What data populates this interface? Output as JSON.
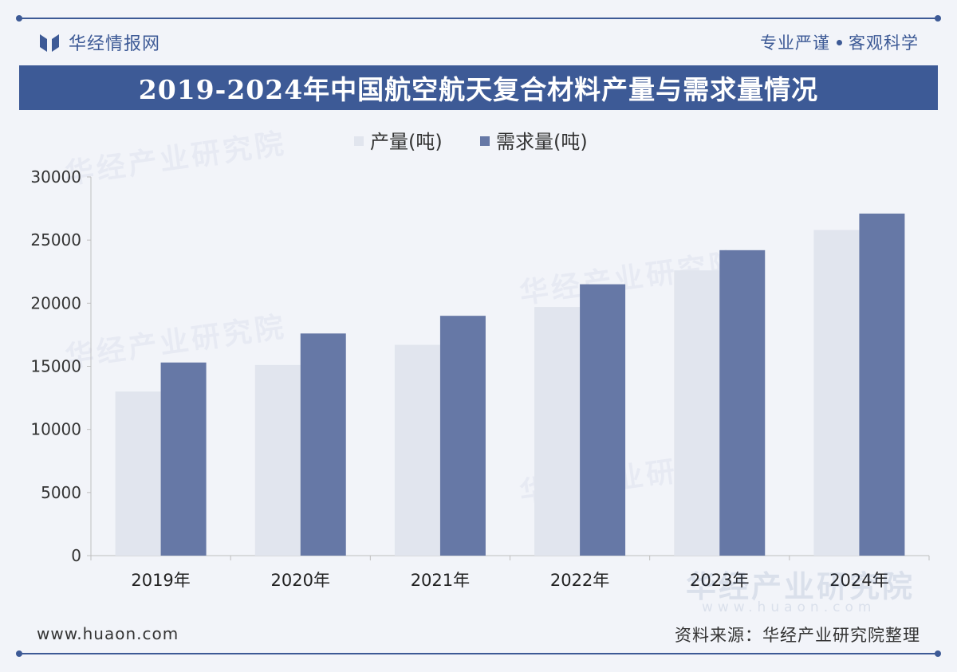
{
  "header": {
    "brand": "华经情报网",
    "slogan_left": "专业严谨",
    "slogan_right": "客观科学"
  },
  "watermark": {
    "text": "华经产业研究院",
    "url": "www.huaon.com"
  },
  "footer": {
    "url": "www.huaon.com",
    "source": "资料来源：华经产业研究院整理"
  },
  "colors": {
    "production": "#e1e5ee",
    "demand": "#6678a6",
    "accent": "#3d5a96"
  },
  "chart_data": {
    "type": "bar",
    "title": "2019-2024年中国航空航天复合材料产量与需求量情况",
    "categories": [
      "2019年",
      "2020年",
      "2021年",
      "2022年",
      "2023年",
      "2024年"
    ],
    "series": [
      {
        "name": "产量(吨)",
        "values": [
          13000,
          15100,
          16700,
          19700,
          22600,
          25800
        ]
      },
      {
        "name": "需求量(吨)",
        "values": [
          15300,
          17600,
          19000,
          21500,
          24200,
          27100
        ]
      }
    ],
    "ylim": [
      0,
      30000
    ],
    "yticks": [
      "0",
      "5000",
      "10000",
      "15000",
      "20000",
      "25000",
      "30000"
    ],
    "legend": "top-center",
    "grid": false
  }
}
